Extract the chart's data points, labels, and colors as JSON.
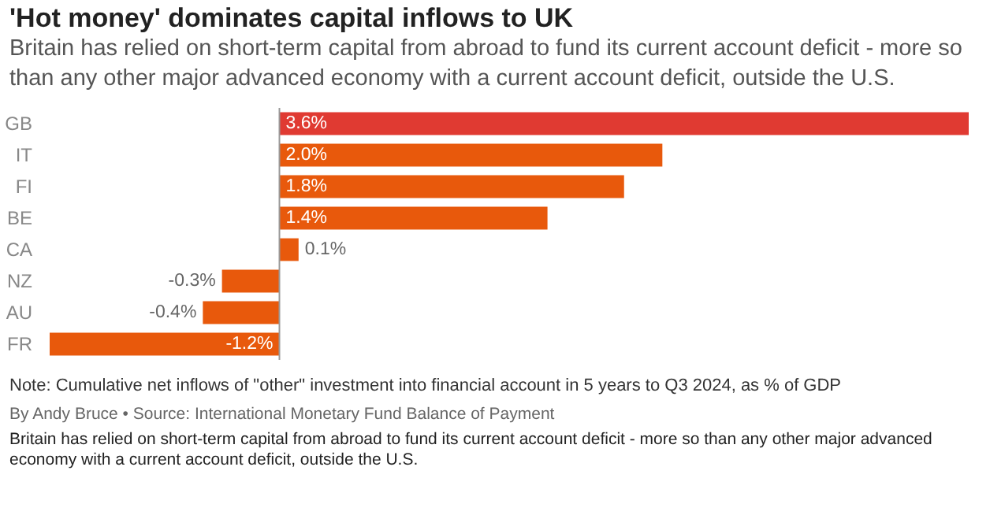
{
  "chart_data": {
    "type": "bar",
    "orientation": "horizontal",
    "title": "'Hot money' dominates capital inflows to UK",
    "subtitle": "Britain has relied on short-term capital from abroad to fund its current account deficit - more so than any other major advanced economy with a current account deficit, outside the U.S.",
    "categories": [
      "GB",
      "IT",
      "FI",
      "BE",
      "CA",
      "NZ",
      "AU",
      "FR"
    ],
    "values": [
      3.6,
      2.0,
      1.8,
      1.4,
      0.1,
      -0.3,
      -0.4,
      -1.2
    ],
    "value_labels": [
      "3.6%",
      "2.0%",
      "1.8%",
      "1.4%",
      "0.1%",
      "-0.3%",
      "-0.4%",
      "-1.2%"
    ],
    "colors": [
      "#e03a32",
      "#e8590c",
      "#e8590c",
      "#e8590c",
      "#e8590c",
      "#e8590c",
      "#e8590c",
      "#e8590c"
    ],
    "annotations": [
      "Note: Cumulative net inflows of \"other\" investment into financial account in 5 years to Q3 2024, as % of GDP",
      "By Andy Bruce • Source: International Monetary Fund Balance of Payment",
      "Britain has relied on short-term capital from abroad to fund its current account deficit - more so than any other major advanced economy with a current account deficit, outside the U.S."
    ],
    "grid": false
  }
}
